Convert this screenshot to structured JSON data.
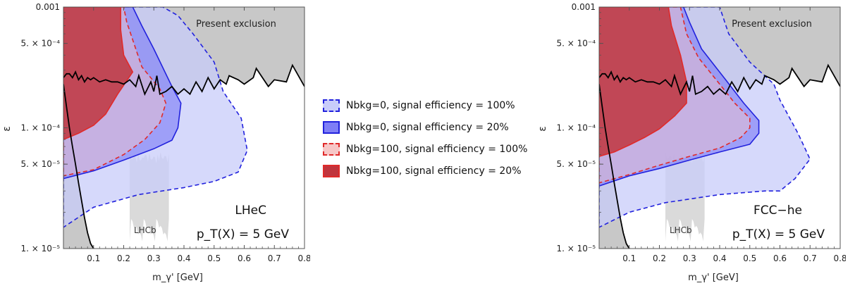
{
  "legend": {
    "items": [
      {
        "label": "Nbkg=0, signal efficiency = 100%",
        "fill": "#c8ccfa",
        "stroke": "#2222dd",
        "dashed": true
      },
      {
        "label": "Nbkg=0, signal efficiency = 20%",
        "fill": "#7f7ff6",
        "stroke": "#2222dd",
        "dashed": false
      },
      {
        "label": "Nbkg=100, signal efficiency = 100%",
        "fill": "#f7c7c7",
        "stroke": "#e02a2a",
        "dashed": true
      },
      {
        "label": "Nbkg=100, signal efficiency = 20%",
        "fill": "#c0353d",
        "stroke": "#e02a2a",
        "dashed": false
      }
    ]
  },
  "chart_data": [
    {
      "type": "area",
      "panel_label": "LHeC",
      "kinematics_label": "p_T(X) = 5 GeV",
      "xlabel": "m_γ' [GeV]",
      "ylabel": "ε",
      "xlim": [
        0,
        0.8
      ],
      "ylim": [
        1e-05,
        0.001
      ],
      "y_scale": "log",
      "x_ticks": [
        {
          "v": 0.1,
          "t": "0.1"
        },
        {
          "v": 0.2,
          "t": "0.2"
        },
        {
          "v": 0.3,
          "t": "0.3"
        },
        {
          "v": 0.4,
          "t": "0.4"
        },
        {
          "v": 0.5,
          "t": "0.5"
        },
        {
          "v": 0.6,
          "t": "0.6"
        },
        {
          "v": 0.7,
          "t": "0.7"
        },
        {
          "v": 0.8,
          "t": "0.8"
        }
      ],
      "y_ticks": [
        {
          "v": 0.001,
          "t": "0.001"
        },
        {
          "v": 0.0005,
          "t": "5. × 10⁻⁴"
        },
        {
          "v": 0.0001,
          "t": "1. × 10⁻⁴"
        },
        {
          "v": 5e-05,
          "t": "5. × 10⁻⁵"
        },
        {
          "v": 1e-05,
          "t": "1. × 10⁻⁵"
        }
      ],
      "exclusion_label": "Present exclusion",
      "lhcb_label": "LHCb",
      "lhcb_region": {
        "x": [
          0.22,
          0.35
        ],
        "y": [
          1.15e-05,
          6.3e-05
        ]
      },
      "exclusion_boundary": [
        [
          0.0,
          0.00026
        ],
        [
          0.01,
          0.00028
        ],
        [
          0.02,
          0.00028
        ],
        [
          0.03,
          0.00026
        ],
        [
          0.04,
          0.00029
        ],
        [
          0.05,
          0.00025
        ],
        [
          0.06,
          0.00027
        ],
        [
          0.07,
          0.00024
        ],
        [
          0.08,
          0.00026
        ],
        [
          0.09,
          0.00025
        ],
        [
          0.1,
          0.00026
        ],
        [
          0.12,
          0.00024
        ],
        [
          0.14,
          0.00025
        ],
        [
          0.16,
          0.00024
        ],
        [
          0.18,
          0.00024
        ],
        [
          0.2,
          0.00023
        ],
        [
          0.22,
          0.00025
        ],
        [
          0.24,
          0.00022
        ],
        [
          0.25,
          0.00027
        ],
        [
          0.27,
          0.00019
        ],
        [
          0.29,
          0.00024
        ],
        [
          0.3,
          0.0002
        ],
        [
          0.31,
          0.00027
        ],
        [
          0.32,
          0.00019
        ],
        [
          0.34,
          0.0002
        ],
        [
          0.36,
          0.00022
        ],
        [
          0.38,
          0.00019
        ],
        [
          0.4,
          0.00021
        ],
        [
          0.42,
          0.00019
        ],
        [
          0.44,
          0.00024
        ],
        [
          0.46,
          0.0002
        ],
        [
          0.48,
          0.00026
        ],
        [
          0.5,
          0.00021
        ],
        [
          0.52,
          0.00025
        ],
        [
          0.54,
          0.00023
        ],
        [
          0.55,
          0.00027
        ],
        [
          0.58,
          0.00025
        ],
        [
          0.6,
          0.00023
        ],
        [
          0.63,
          0.00026
        ],
        [
          0.64,
          0.00031
        ],
        [
          0.68,
          0.00022
        ],
        [
          0.7,
          0.00025
        ],
        [
          0.74,
          0.00024
        ],
        [
          0.76,
          0.00033
        ],
        [
          0.8,
          0.00022
        ]
      ],
      "beam_dump_curve": [
        [
          0.0,
          0.00023
        ],
        [
          0.01,
          0.00015
        ],
        [
          0.02,
          0.0001
        ],
        [
          0.03,
          7e-05
        ],
        [
          0.04,
          5e-05
        ],
        [
          0.05,
          3.5e-05
        ],
        [
          0.06,
          2.5e-05
        ],
        [
          0.07,
          1.8e-05
        ],
        [
          0.08,
          1.35e-05
        ],
        [
          0.09,
          1.1e-05
        ],
        [
          0.1,
          1e-05
        ]
      ],
      "regions": [
        {
          "series": 0,
          "points": [
            [
              0.0,
              0.0001
            ],
            [
              0.0,
              1.5e-05
            ],
            [
              0.1,
              2.2e-05
            ],
            [
              0.25,
              2.8e-05
            ],
            [
              0.4,
              3.2e-05
            ],
            [
              0.5,
              3.6e-05
            ],
            [
              0.58,
              4.3e-05
            ],
            [
              0.61,
              6.5e-05
            ],
            [
              0.59,
              0.00012
            ],
            [
              0.53,
              0.0002
            ],
            [
              0.5,
              0.00035
            ],
            [
              0.43,
              0.0006
            ],
            [
              0.38,
              0.00085
            ],
            [
              0.33,
              0.001
            ],
            [
              0.0,
              0.001
            ]
          ]
        },
        {
          "series": 1,
          "points": [
            [
              0.0,
              8e-05
            ],
            [
              0.0,
              3.8e-05
            ],
            [
              0.1,
              4.4e-05
            ],
            [
              0.2,
              5.4e-05
            ],
            [
              0.3,
              6.7e-05
            ],
            [
              0.36,
              7.9e-05
            ],
            [
              0.38,
              0.0001
            ],
            [
              0.39,
              0.00016
            ],
            [
              0.36,
              0.00022
            ],
            [
              0.3,
              0.00045
            ],
            [
              0.26,
              0.0007
            ],
            [
              0.23,
              0.001
            ],
            [
              0.0,
              0.001
            ]
          ]
        },
        {
          "series": 2,
          "points": [
            [
              0.0,
              7e-05
            ],
            [
              0.0,
              4e-05
            ],
            [
              0.1,
              4.5e-05
            ],
            [
              0.2,
              6e-05
            ],
            [
              0.27,
              8e-05
            ],
            [
              0.32,
              0.00011
            ],
            [
              0.34,
              0.00016
            ],
            [
              0.32,
              0.00021
            ],
            [
              0.26,
              0.00032
            ],
            [
              0.21,
              0.00075
            ],
            [
              0.2,
              0.001
            ],
            [
              0.0,
              0.001
            ]
          ]
        },
        {
          "series": 3,
          "points": [
            [
              0.0,
              0.00014
            ],
            [
              0.0,
              8e-05
            ],
            [
              0.05,
              9e-05
            ],
            [
              0.1,
              0.000105
            ],
            [
              0.14,
              0.00013
            ],
            [
              0.18,
              0.00019
            ],
            [
              0.23,
              0.00029
            ],
            [
              0.2,
              0.0004
            ],
            [
              0.19,
              0.00065
            ],
            [
              0.19,
              0.001
            ],
            [
              0.0,
              0.001
            ]
          ]
        }
      ]
    },
    {
      "type": "area",
      "panel_label": "FCC−he",
      "kinematics_label": "p_T(X) = 5 GeV",
      "xlabel": "m_γ' [GeV]",
      "ylabel": "ε",
      "xlim": [
        0,
        0.8
      ],
      "ylim": [
        1e-05,
        0.001
      ],
      "y_scale": "log",
      "x_ticks": [
        {
          "v": 0.1,
          "t": "0.1"
        },
        {
          "v": 0.2,
          "t": "0.2"
        },
        {
          "v": 0.3,
          "t": "0.3"
        },
        {
          "v": 0.4,
          "t": "0.4"
        },
        {
          "v": 0.5,
          "t": "0.5"
        },
        {
          "v": 0.6,
          "t": "0.6"
        },
        {
          "v": 0.7,
          "t": "0.7"
        },
        {
          "v": 0.8,
          "t": "0.8"
        }
      ],
      "y_ticks": [
        {
          "v": 0.001,
          "t": "0.001"
        },
        {
          "v": 0.0005,
          "t": "5. × 10⁻⁴"
        },
        {
          "v": 0.0001,
          "t": "1. × 10⁻⁴"
        },
        {
          "v": 5e-05,
          "t": "5. × 10⁻⁵"
        },
        {
          "v": 1e-05,
          "t": "1. × 10⁻⁵"
        }
      ],
      "exclusion_label": "Present exclusion",
      "lhcb_label": "LHCb",
      "lhcb_region": {
        "x": [
          0.22,
          0.35
        ],
        "y": [
          1.15e-05,
          6.3e-05
        ]
      },
      "exclusion_boundary": [
        [
          0.0,
          0.00026
        ],
        [
          0.01,
          0.00028
        ],
        [
          0.02,
          0.00028
        ],
        [
          0.03,
          0.00026
        ],
        [
          0.04,
          0.00029
        ],
        [
          0.05,
          0.00025
        ],
        [
          0.06,
          0.00027
        ],
        [
          0.07,
          0.00024
        ],
        [
          0.08,
          0.00026
        ],
        [
          0.09,
          0.00025
        ],
        [
          0.1,
          0.00026
        ],
        [
          0.12,
          0.00024
        ],
        [
          0.14,
          0.00025
        ],
        [
          0.16,
          0.00024
        ],
        [
          0.18,
          0.00024
        ],
        [
          0.2,
          0.00023
        ],
        [
          0.22,
          0.00025
        ],
        [
          0.24,
          0.00022
        ],
        [
          0.25,
          0.00027
        ],
        [
          0.27,
          0.00019
        ],
        [
          0.29,
          0.00024
        ],
        [
          0.3,
          0.0002
        ],
        [
          0.31,
          0.00027
        ],
        [
          0.32,
          0.00019
        ],
        [
          0.34,
          0.0002
        ],
        [
          0.36,
          0.00022
        ],
        [
          0.38,
          0.00019
        ],
        [
          0.4,
          0.00021
        ],
        [
          0.42,
          0.00019
        ],
        [
          0.44,
          0.00024
        ],
        [
          0.46,
          0.0002
        ],
        [
          0.48,
          0.00026
        ],
        [
          0.5,
          0.00021
        ],
        [
          0.52,
          0.00025
        ],
        [
          0.54,
          0.00023
        ],
        [
          0.55,
          0.00027
        ],
        [
          0.58,
          0.00025
        ],
        [
          0.6,
          0.00023
        ],
        [
          0.63,
          0.00026
        ],
        [
          0.64,
          0.00031
        ],
        [
          0.68,
          0.00022
        ],
        [
          0.7,
          0.00025
        ],
        [
          0.74,
          0.00024
        ],
        [
          0.76,
          0.00033
        ],
        [
          0.8,
          0.00022
        ]
      ],
      "beam_dump_curve": [
        [
          0.0,
          0.00023
        ],
        [
          0.01,
          0.00015
        ],
        [
          0.02,
          0.0001
        ],
        [
          0.03,
          7e-05
        ],
        [
          0.04,
          5e-05
        ],
        [
          0.05,
          3.5e-05
        ],
        [
          0.06,
          2.5e-05
        ],
        [
          0.07,
          1.8e-05
        ],
        [
          0.08,
          1.35e-05
        ],
        [
          0.09,
          1.1e-05
        ],
        [
          0.1,
          1e-05
        ]
      ],
      "regions": [
        {
          "series": 0,
          "points": [
            [
              0.0,
              0.0001
            ],
            [
              0.0,
              1.5e-05
            ],
            [
              0.1,
              2e-05
            ],
            [
              0.22,
              2.4e-05
            ],
            [
              0.4,
              2.8e-05
            ],
            [
              0.55,
              3e-05
            ],
            [
              0.6,
              3e-05
            ],
            [
              0.65,
              3.8e-05
            ],
            [
              0.7,
              5.5e-05
            ],
            [
              0.66,
              9e-05
            ],
            [
              0.6,
              0.00017
            ],
            [
              0.58,
              0.00023
            ],
            [
              0.5,
              0.00035
            ],
            [
              0.43,
              0.0006
            ],
            [
              0.4,
              0.001
            ],
            [
              0.0,
              0.001
            ]
          ]
        },
        {
          "series": 1,
          "points": [
            [
              0.0,
              8e-05
            ],
            [
              0.0,
              3.3e-05
            ],
            [
              0.1,
              4e-05
            ],
            [
              0.2,
              4.6e-05
            ],
            [
              0.3,
              5.4e-05
            ],
            [
              0.4,
              6.3e-05
            ],
            [
              0.5,
              7.3e-05
            ],
            [
              0.53,
              9e-05
            ],
            [
              0.53,
              0.000115
            ],
            [
              0.48,
              0.00016
            ],
            [
              0.42,
              0.00025
            ],
            [
              0.34,
              0.00045
            ],
            [
              0.3,
              0.00075
            ],
            [
              0.28,
              0.001
            ],
            [
              0.0,
              0.001
            ]
          ]
        },
        {
          "series": 2,
          "points": [
            [
              0.0,
              7e-05
            ],
            [
              0.0,
              3.5e-05
            ],
            [
              0.1,
              4.1e-05
            ],
            [
              0.2,
              4.9e-05
            ],
            [
              0.3,
              5.8e-05
            ],
            [
              0.4,
              6.8e-05
            ],
            [
              0.47,
              8.3e-05
            ],
            [
              0.5,
              0.0001
            ],
            [
              0.5,
              0.00012
            ],
            [
              0.45,
              0.00016
            ],
            [
              0.4,
              0.00023
            ],
            [
              0.33,
              0.00038
            ],
            [
              0.29,
              0.0006
            ],
            [
              0.27,
              0.001
            ],
            [
              0.0,
              0.001
            ]
          ]
        },
        {
          "series": 3,
          "points": [
            [
              0.0,
              0.00016
            ],
            [
              0.0,
              5.8e-05
            ],
            [
              0.05,
              6.3e-05
            ],
            [
              0.1,
              7.2e-05
            ],
            [
              0.15,
              8.3e-05
            ],
            [
              0.2,
              9.8e-05
            ],
            [
              0.25,
              0.000125
            ],
            [
              0.29,
              0.00016
            ],
            [
              0.29,
              0.00024
            ],
            [
              0.27,
              0.0004
            ],
            [
              0.24,
              0.0007
            ],
            [
              0.23,
              0.001
            ],
            [
              0.0,
              0.001
            ]
          ]
        }
      ]
    }
  ]
}
